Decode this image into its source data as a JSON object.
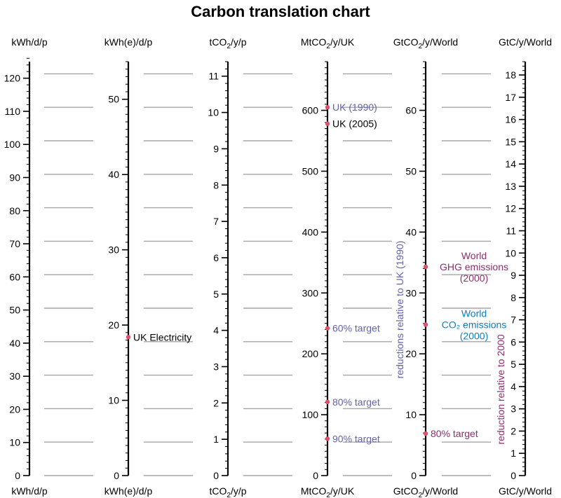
{
  "chart_data": {
    "type": "table",
    "title": "Carbon translation chart",
    "grid": true,
    "axes": [
      {
        "unit": "kWh/d/p",
        "sub": "",
        "after": "",
        "tail": "",
        "range": [
          0,
          125
        ],
        "labels": [
          0,
          10,
          20,
          30,
          40,
          50,
          60,
          70,
          80,
          90,
          100,
          110,
          120
        ],
        "minor": 2
      },
      {
        "unit": "kWh(e)/d/p",
        "sub": "",
        "after": "",
        "tail": "",
        "range": [
          0,
          55
        ],
        "labels": [
          0,
          10,
          20,
          30,
          40,
          50
        ],
        "minor": 1
      },
      {
        "unit": "tCO",
        "sub": "2",
        "after": "/y/p",
        "tail": "",
        "range": [
          0,
          11.4
        ],
        "labels": [
          0,
          1,
          2,
          3,
          4,
          5,
          6,
          7,
          8,
          9,
          10,
          11
        ],
        "minor": 0.2
      },
      {
        "unit": "MtCO",
        "sub": "2",
        "after": "/y/UK",
        "tail": "",
        "range": [
          0,
          680
        ],
        "labels": [
          0,
          100,
          200,
          300,
          400,
          500,
          600
        ],
        "minor": 10
      },
      {
        "unit": "GtCO",
        "sub": "2",
        "after": "/y/World",
        "tail": "",
        "range": [
          0,
          68
        ],
        "labels": [
          0,
          10,
          20,
          30,
          40,
          50,
          60
        ],
        "minor": 1
      },
      {
        "unit": "GtC/y/World",
        "sub": "",
        "after": "",
        "tail": "",
        "range": [
          0,
          18.6
        ],
        "labels": [
          0,
          1,
          2,
          3,
          4,
          5,
          6,
          7,
          8,
          9,
          10,
          11,
          12,
          13,
          14,
          15,
          16,
          17,
          18
        ],
        "minor": 0.2
      }
    ],
    "annotations": [
      {
        "axis": 1,
        "value": 18.4,
        "lines": [
          "UK Electricity"
        ],
        "color": "#000000"
      },
      {
        "axis": 3,
        "value": 605,
        "lines": [
          "UK (1990)"
        ],
        "color": "#6264a7"
      },
      {
        "axis": 3,
        "value": 578,
        "lines": [
          "UK (2005)"
        ],
        "color": "#000000"
      },
      {
        "axis": 3,
        "value": 242,
        "lines": [
          "60% target"
        ],
        "color": "#6264a7"
      },
      {
        "axis": 3,
        "value": 121,
        "lines": [
          "80% target"
        ],
        "color": "#6264a7"
      },
      {
        "axis": 3,
        "value": 60.5,
        "lines": [
          "90% target"
        ],
        "color": "#6264a7"
      },
      {
        "axis": 4,
        "value": 34.3,
        "lines": [
          "World",
          "GHG emissions",
          "(2000)"
        ],
        "color": "#8e2f6e"
      },
      {
        "axis": 4,
        "value": 24.8,
        "lines": [
          "World",
          "CO₂ emissions",
          "(2000)"
        ],
        "color": "#0a7fc4"
      },
      {
        "axis": 4,
        "value": 6.9,
        "lines": [
          "80% target"
        ],
        "color": "#8e2f6e"
      }
    ],
    "side_labels": [
      {
        "text": "reductions relative to UK (1990)",
        "color": "#6264a7"
      },
      {
        "text": "reduction relative to 2000",
        "color": "#8e2f6e"
      }
    ]
  }
}
